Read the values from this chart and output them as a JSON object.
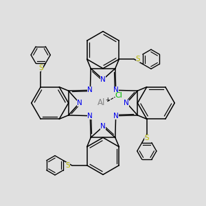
{
  "bg_color": "#e0e0e0",
  "line_color": "#000000",
  "line_width": 1.1,
  "al_label": "Al",
  "al_color": "#888888",
  "al_fontsize": 8.5,
  "cl_label": "Cl",
  "cl_color": "#00bb00",
  "cl_fontsize": 8,
  "n_label": "N",
  "n_color": "#0000ee",
  "n_fontsize": 7.5,
  "s_label": "S",
  "s_color": "#bbbb00",
  "s_fontsize": 7.5,
  "plus_label": "+",
  "plus_color": "#333333",
  "plus_fontsize": 5.5,
  "xlim": [
    -1.2,
    1.2
  ],
  "ylim": [
    -1.2,
    1.2
  ]
}
